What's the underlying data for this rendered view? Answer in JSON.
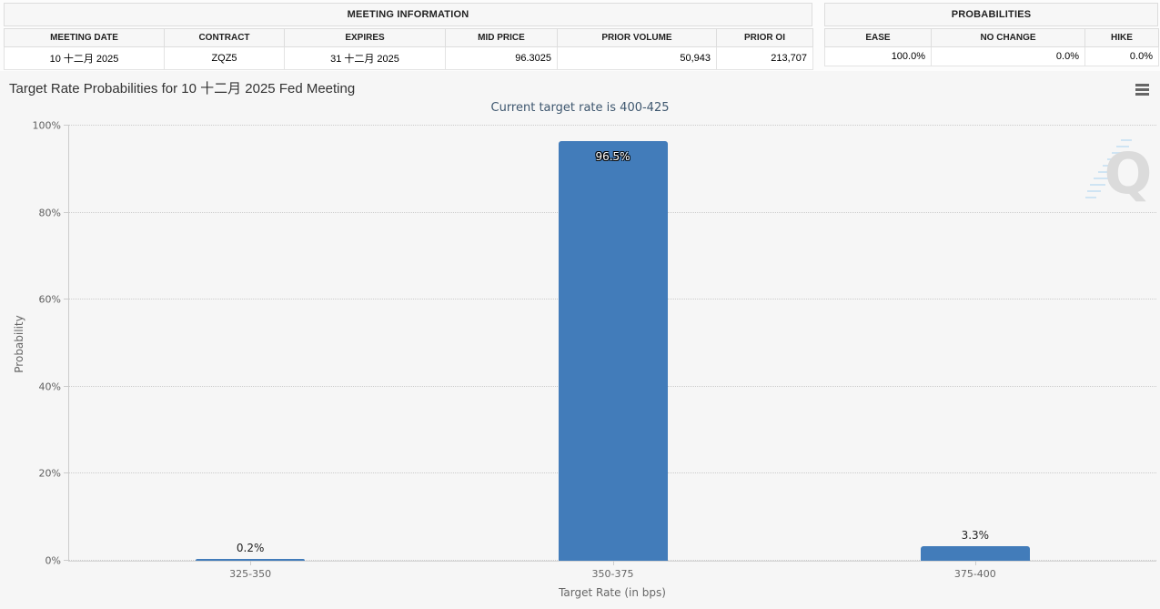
{
  "meeting_information": {
    "title": "MEETING INFORMATION",
    "headers": [
      "MEETING DATE",
      "CONTRACT",
      "EXPIRES",
      "MID PRICE",
      "PRIOR VOLUME",
      "PRIOR OI"
    ],
    "row": [
      "10 十二月 2025",
      "ZQZ5",
      "31 十二月 2025",
      "96.3025",
      "50,943",
      "213,707"
    ]
  },
  "probabilities": {
    "title": "PROBABILITIES",
    "headers": [
      "EASE",
      "NO CHANGE",
      "HIKE"
    ],
    "row": [
      "100.0%",
      "0.0%",
      "0.0%"
    ]
  },
  "icons": {
    "export_menu": "hamburger-menu-icon",
    "watermark": "quikstrike-q-logo"
  },
  "chart_data": {
    "type": "bar",
    "title": "Target Rate Probabilities for 10 十二月 2025 Fed Meeting",
    "subtitle": "Current target rate is 400-425",
    "categories": [
      "325-350",
      "350-375",
      "375-400"
    ],
    "values": [
      0.2,
      96.5,
      3.3
    ],
    "value_labels": [
      "0.2%",
      "96.5%",
      "3.3%"
    ],
    "xlabel": "Target Rate (in bps)",
    "ylabel": "Probability",
    "ylim": [
      0,
      100
    ],
    "yticks": [
      0,
      20,
      40,
      60,
      80,
      100
    ],
    "ytick_labels": [
      "0%",
      "20%",
      "40%",
      "60%",
      "80%",
      "100%"
    ],
    "bar_color": "#427cba",
    "grid": "horizontal-dotted",
    "legend": "none",
    "watermark_letter": "Q"
  }
}
